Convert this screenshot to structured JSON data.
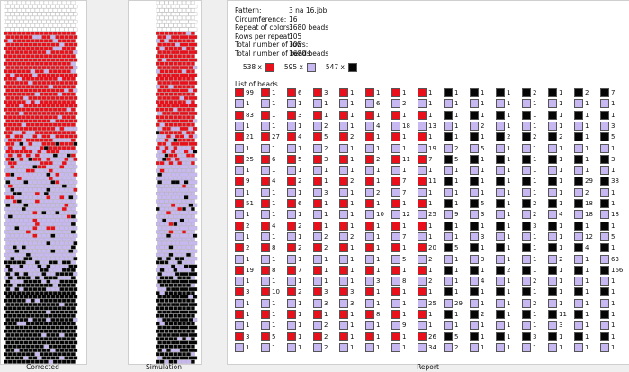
{
  "colors": {
    "red": "#e8101a",
    "lavender": "#c7b8f2",
    "black": "#050505"
  },
  "pattern": {
    "rows": [
      {
        "label": "Pattern:",
        "value": "3 na 16.jbb"
      },
      {
        "label": "Circumference:",
        "value": "16"
      },
      {
        "label": "Repeat of colors:",
        "value": "1680 beads"
      },
      {
        "label": "Rows per repeat:",
        "value": "105"
      },
      {
        "label": "Total number of rows:",
        "value": "105"
      },
      {
        "label": "Total number of beads:",
        "value": "1680 beads"
      }
    ],
    "legend": [
      {
        "count": "538 x",
        "color": "red"
      },
      {
        "count": "595 x",
        "color": "lavender"
      },
      {
        "count": "547 x",
        "color": "black"
      }
    ],
    "list_label": "List of beads"
  },
  "captions": {
    "corrected": "Corrected",
    "simulation": "Simulation",
    "report": "Report"
  },
  "bead_list": [
    [
      "99",
      "1",
      "83",
      "1",
      "21",
      "1",
      "25",
      "1",
      "9",
      "1",
      "51",
      "1",
      "2",
      "1",
      "2",
      "1",
      "19",
      "1",
      "3",
      "1",
      "1",
      "1",
      "3",
      "1"
    ],
    [
      "1",
      "1",
      "1",
      "1",
      "27",
      "1",
      "6",
      "1",
      "4",
      "1",
      "1",
      "1",
      "4",
      "1",
      "8",
      "1",
      "8",
      "1",
      "10",
      "1",
      "1",
      "1",
      "5",
      "1"
    ],
    [
      "6",
      "1",
      "3",
      "1",
      "4",
      "1",
      "5",
      "1",
      "2",
      "1",
      "6",
      "1",
      "2",
      "1",
      "2",
      "1",
      "7",
      "1",
      "2",
      "1",
      "1",
      "1",
      "1",
      "1"
    ],
    [
      "3",
      "1",
      "1",
      "2",
      "5",
      "2",
      "3",
      "1",
      "1",
      "3",
      "1",
      "1",
      "1",
      "2",
      "2",
      "1",
      "1",
      "1",
      "3",
      "3",
      "1",
      "2",
      "2",
      "2"
    ],
    [
      "1",
      "1",
      "1",
      "1",
      "2",
      "1",
      "1",
      "1",
      "2",
      "1",
      "1",
      "1",
      "1",
      "2",
      "1",
      "1",
      "1",
      "1",
      "3",
      "3",
      "1",
      "1",
      "1",
      "1"
    ],
    [
      "1",
      "6",
      "1",
      "4",
      "1",
      "1",
      "2",
      "1",
      "1",
      "2",
      "1",
      "10",
      "1",
      "1",
      "1",
      "1",
      "1",
      "3",
      "1",
      "1",
      "8",
      "1",
      "1",
      "1"
    ],
    [
      "1",
      "2",
      "1",
      "18",
      "1",
      "1",
      "11",
      "1",
      "7",
      "7",
      "1",
      "12",
      "1",
      "7",
      "1",
      "5",
      "1",
      "8",
      "1",
      "1",
      "1",
      "9",
      "1",
      "1"
    ],
    [
      "1",
      "1",
      "1",
      "13",
      "1",
      "19",
      "7",
      "1",
      "11",
      "1",
      "1",
      "25",
      "1",
      "1",
      "20",
      "2",
      "1",
      "2",
      "1",
      "25",
      "1",
      "1",
      "26",
      "34"
    ],
    [
      "1",
      "1",
      "1",
      "1",
      "1",
      "2",
      "5",
      "1",
      "1",
      "1",
      "1",
      "9",
      "1",
      "1",
      "5",
      "1",
      "1",
      "1",
      "1",
      "29",
      "1",
      "1",
      "5",
      "2"
    ],
    [
      "1",
      "1",
      "1",
      "2",
      "1",
      "5",
      "1",
      "1",
      "1",
      "1",
      "5",
      "3",
      "1",
      "3",
      "1",
      "3",
      "1",
      "4",
      "1",
      "1",
      "2",
      "1",
      "1",
      "1"
    ],
    [
      "1",
      "1",
      "1",
      "1",
      "2",
      "1",
      "1",
      "1",
      "1",
      "1",
      "1",
      "1",
      "1",
      "1",
      "1",
      "1",
      "2",
      "1",
      "1",
      "1",
      "1",
      "1",
      "1",
      "1"
    ],
    [
      "2",
      "1",
      "1",
      "1",
      "2",
      "1",
      "1",
      "1",
      "1",
      "1",
      "2",
      "2",
      "3",
      "1",
      "1",
      "1",
      "1",
      "2",
      "1",
      "2",
      "1",
      "1",
      "3",
      "1"
    ],
    [
      "1",
      "1",
      "1",
      "1",
      "2",
      "1",
      "1",
      "1",
      "1",
      "1",
      "1",
      "4",
      "1",
      "1",
      "1",
      "2",
      "1",
      "1",
      "1",
      "1",
      "11",
      "3",
      "1",
      "1"
    ],
    [
      "2",
      "1",
      "1",
      "1",
      "1",
      "1",
      "1",
      "1",
      "29",
      "2",
      "18",
      "18",
      "1",
      "12",
      "4",
      "1",
      "1",
      "1",
      "1",
      "1",
      "1",
      "1",
      "1",
      "1"
    ],
    [
      "7",
      "1",
      "1",
      "3",
      "5",
      "1",
      "3",
      "1",
      "38",
      "1",
      "1",
      "18",
      "1",
      "5",
      "1",
      "63",
      "166",
      "1",
      "1",
      "1",
      "1",
      "1",
      "1",
      "1"
    ]
  ]
}
